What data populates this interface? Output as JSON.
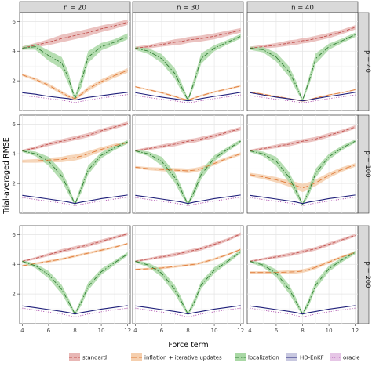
{
  "chart_data": {
    "type": "line",
    "xlabel": "Force term",
    "ylabel": "Trial-averaged RMSE",
    "xlim": [
      3.8,
      12.2
    ],
    "ylim": [
      0,
      6.6
    ],
    "xticks": [
      4,
      6,
      8,
      10,
      12
    ],
    "yticks": [
      2,
      4,
      6
    ],
    "grid": true,
    "legend_position": "bottom",
    "col_facets": [
      "n = 20",
      "n = 30",
      "n = 40"
    ],
    "row_facets": [
      "p = 40",
      "p = 100",
      "p = 200"
    ],
    "x": [
      4,
      5,
      6,
      7,
      7.5,
      8,
      8.5,
      9,
      10,
      11,
      12
    ],
    "colors": {
      "standard": "#c0504d",
      "inflation + iterative updates": "#e07b39",
      "localization": "#2f7d32",
      "HD-EnKF": "#1f1f7a",
      "oracle": "#b35ab3"
    },
    "legend": [
      {
        "name": "standard",
        "style": "dashed",
        "band": "#e8b7b5"
      },
      {
        "name": "inflation + iterative updates",
        "style": "longdash",
        "band": "#f5cfae"
      },
      {
        "name": "localization",
        "style": "dashdot",
        "band": "#a9d8a5"
      },
      {
        "name": "HD-EnKF",
        "style": "solid",
        "band": "#c8c8e0"
      },
      {
        "name": "oracle",
        "style": "dotted",
        "band": "#e6c6e6"
      }
    ],
    "panels": [
      {
        "row": 0,
        "col": 0,
        "series": {
          "standard": [
            4.2,
            4.4,
            4.6,
            4.85,
            4.95,
            5.05,
            5.15,
            5.25,
            5.5,
            5.7,
            5.95
          ],
          "standard_band": [
            0.12,
            0.15,
            0.2,
            0.25,
            0.25,
            0.25,
            0.25,
            0.25,
            0.22,
            0.2,
            0.18
          ],
          "inflation + iterative updates": [
            2.4,
            2.1,
            1.7,
            1.2,
            0.95,
            0.8,
            1.1,
            1.45,
            1.95,
            2.35,
            2.7
          ],
          "inflation + iterative updates_band": [
            0.08,
            0.1,
            0.12,
            0.12,
            0.12,
            0.1,
            0.12,
            0.15,
            0.15,
            0.15,
            0.15
          ],
          "localization": [
            4.2,
            4.3,
            3.7,
            3.2,
            2.2,
            0.8,
            2.0,
            3.6,
            4.3,
            4.6,
            5.0
          ],
          "localization_band": [
            0.1,
            0.2,
            0.35,
            0.4,
            0.4,
            0.15,
            0.4,
            0.4,
            0.25,
            0.2,
            0.2
          ],
          "HD-EnKF": [
            1.2,
            1.1,
            0.95,
            0.85,
            0.8,
            0.7,
            0.8,
            0.88,
            1.0,
            1.12,
            1.22
          ],
          "oracle": [
            1.0,
            0.92,
            0.8,
            0.7,
            0.62,
            0.52,
            0.62,
            0.7,
            0.85,
            0.95,
            1.08
          ]
        }
      },
      {
        "row": 0,
        "col": 1,
        "series": {
          "standard": [
            4.2,
            4.3,
            4.45,
            4.6,
            4.65,
            4.75,
            4.8,
            4.85,
            5.0,
            5.2,
            5.4
          ],
          "standard_band": [
            0.1,
            0.12,
            0.15,
            0.2,
            0.2,
            0.2,
            0.2,
            0.2,
            0.2,
            0.18,
            0.15
          ],
          "inflation + iterative updates": [
            1.6,
            1.4,
            1.2,
            0.95,
            0.8,
            0.7,
            0.85,
            1.0,
            1.25,
            1.45,
            1.65
          ],
          "inflation + iterative updates_band": [
            0.05,
            0.05,
            0.06,
            0.06,
            0.06,
            0.05,
            0.06,
            0.06,
            0.06,
            0.06,
            0.06
          ],
          "localization": [
            4.2,
            4.0,
            3.5,
            2.5,
            1.6,
            0.7,
            2.0,
            3.5,
            4.2,
            4.6,
            5.0
          ],
          "localization_band": [
            0.1,
            0.2,
            0.3,
            0.35,
            0.3,
            0.1,
            0.3,
            0.35,
            0.2,
            0.15,
            0.15
          ],
          "HD-EnKF": [
            1.2,
            1.05,
            0.9,
            0.78,
            0.72,
            0.65,
            0.72,
            0.8,
            0.95,
            1.08,
            1.22
          ],
          "oracle": [
            1.0,
            0.88,
            0.75,
            0.65,
            0.58,
            0.52,
            0.58,
            0.66,
            0.8,
            0.92,
            1.05
          ]
        }
      },
      {
        "row": 0,
        "col": 2,
        "series": {
          "standard": [
            4.2,
            4.3,
            4.4,
            4.55,
            4.6,
            4.7,
            4.75,
            4.85,
            5.05,
            5.3,
            5.6
          ],
          "standard_band": [
            0.1,
            0.12,
            0.15,
            0.18,
            0.18,
            0.18,
            0.18,
            0.18,
            0.18,
            0.15,
            0.15
          ],
          "inflation + iterative updates": [
            1.25,
            1.1,
            0.95,
            0.8,
            0.72,
            0.62,
            0.72,
            0.85,
            1.05,
            1.2,
            1.4
          ],
          "inflation + iterative updates_band": [
            0.04,
            0.04,
            0.04,
            0.04,
            0.04,
            0.04,
            0.04,
            0.04,
            0.04,
            0.04,
            0.04
          ],
          "localization": [
            4.2,
            4.1,
            3.6,
            2.6,
            1.7,
            0.7,
            2.0,
            3.5,
            4.3,
            4.7,
            5.1
          ],
          "localization_band": [
            0.1,
            0.18,
            0.3,
            0.35,
            0.3,
            0.1,
            0.3,
            0.35,
            0.2,
            0.15,
            0.15
          ],
          "HD-EnKF": [
            1.2,
            1.05,
            0.9,
            0.78,
            0.72,
            0.65,
            0.72,
            0.8,
            0.95,
            1.08,
            1.22
          ],
          "oracle": [
            1.0,
            0.88,
            0.75,
            0.65,
            0.58,
            0.52,
            0.58,
            0.66,
            0.8,
            0.92,
            1.05
          ]
        }
      },
      {
        "row": 1,
        "col": 0,
        "series": {
          "standard": [
            4.2,
            4.4,
            4.65,
            4.85,
            4.95,
            5.05,
            5.15,
            5.25,
            5.55,
            5.8,
            6.05
          ],
          "standard_band": [
            0.08,
            0.1,
            0.12,
            0.14,
            0.14,
            0.14,
            0.14,
            0.14,
            0.14,
            0.12,
            0.12
          ],
          "inflation + iterative updates": [
            3.5,
            3.52,
            3.58,
            3.62,
            3.7,
            3.75,
            3.85,
            4.0,
            4.3,
            4.55,
            4.75
          ],
          "inflation + iterative updates_band": [
            0.1,
            0.12,
            0.15,
            0.18,
            0.2,
            0.2,
            0.2,
            0.18,
            0.15,
            0.12,
            0.1
          ],
          "localization": [
            4.2,
            4.0,
            3.5,
            2.5,
            1.6,
            0.6,
            1.7,
            2.9,
            3.9,
            4.4,
            4.8
          ],
          "localization_band": [
            0.08,
            0.15,
            0.3,
            0.35,
            0.3,
            0.1,
            0.3,
            0.3,
            0.2,
            0.15,
            0.12
          ],
          "HD-EnKF": [
            1.2,
            1.08,
            0.95,
            0.82,
            0.75,
            0.65,
            0.75,
            0.82,
            0.98,
            1.1,
            1.22
          ],
          "oracle": [
            1.05,
            0.92,
            0.8,
            0.68,
            0.6,
            0.5,
            0.6,
            0.68,
            0.82,
            0.95,
            1.08
          ]
        }
      },
      {
        "row": 1,
        "col": 1,
        "series": {
          "standard": [
            4.2,
            4.35,
            4.5,
            4.65,
            4.75,
            4.85,
            4.9,
            5.0,
            5.2,
            5.45,
            5.7
          ],
          "standard_band": [
            0.08,
            0.1,
            0.12,
            0.14,
            0.14,
            0.14,
            0.14,
            0.14,
            0.14,
            0.12,
            0.12
          ],
          "inflation + iterative updates": [
            3.1,
            3.0,
            2.95,
            2.9,
            2.88,
            2.85,
            2.9,
            3.0,
            3.35,
            3.7,
            4.0
          ],
          "inflation + iterative updates_band": [
            0.08,
            0.1,
            0.12,
            0.14,
            0.15,
            0.15,
            0.15,
            0.14,
            0.12,
            0.1,
            0.1
          ],
          "localization": [
            4.2,
            4.0,
            3.5,
            2.4,
            1.5,
            0.6,
            1.5,
            2.6,
            3.7,
            4.3,
            4.85
          ],
          "localization_band": [
            0.08,
            0.15,
            0.3,
            0.35,
            0.3,
            0.1,
            0.3,
            0.3,
            0.2,
            0.15,
            0.12
          ],
          "HD-EnKF": [
            1.2,
            1.08,
            0.95,
            0.82,
            0.75,
            0.65,
            0.75,
            0.82,
            0.98,
            1.1,
            1.22
          ],
          "oracle": [
            1.05,
            0.92,
            0.8,
            0.68,
            0.6,
            0.5,
            0.6,
            0.68,
            0.82,
            0.95,
            1.08
          ]
        }
      },
      {
        "row": 1,
        "col": 2,
        "series": {
          "standard": [
            4.2,
            4.35,
            4.5,
            4.65,
            4.75,
            4.85,
            4.92,
            5.0,
            5.25,
            5.5,
            5.8
          ],
          "standard_band": [
            0.08,
            0.1,
            0.12,
            0.14,
            0.14,
            0.14,
            0.14,
            0.14,
            0.14,
            0.12,
            0.12
          ],
          "inflation + iterative updates": [
            2.6,
            2.45,
            2.25,
            2.0,
            1.85,
            1.7,
            1.85,
            2.05,
            2.55,
            2.95,
            3.25
          ],
          "inflation + iterative updates_band": [
            0.12,
            0.15,
            0.18,
            0.22,
            0.25,
            0.28,
            0.25,
            0.22,
            0.18,
            0.15,
            0.12
          ],
          "localization": [
            4.2,
            4.0,
            3.5,
            2.4,
            1.5,
            0.6,
            1.5,
            2.7,
            3.8,
            4.4,
            4.85
          ],
          "localization_band": [
            0.08,
            0.15,
            0.3,
            0.35,
            0.3,
            0.1,
            0.3,
            0.3,
            0.2,
            0.15,
            0.12
          ],
          "HD-EnKF": [
            1.2,
            1.08,
            0.95,
            0.82,
            0.75,
            0.65,
            0.75,
            0.82,
            0.98,
            1.1,
            1.22
          ],
          "oracle": [
            1.05,
            0.92,
            0.8,
            0.68,
            0.6,
            0.5,
            0.6,
            0.68,
            0.82,
            0.95,
            1.08
          ]
        }
      },
      {
        "row": 2,
        "col": 0,
        "series": {
          "standard": [
            4.2,
            4.4,
            4.65,
            4.9,
            5.0,
            5.1,
            5.2,
            5.3,
            5.55,
            5.8,
            6.05
          ],
          "standard_band": [
            0.06,
            0.08,
            0.1,
            0.12,
            0.12,
            0.12,
            0.12,
            0.12,
            0.12,
            0.1,
            0.1
          ],
          "inflation + iterative updates": [
            3.9,
            4.05,
            4.2,
            4.35,
            4.45,
            4.55,
            4.65,
            4.75,
            4.95,
            5.15,
            5.4
          ],
          "inflation + iterative updates_band": [
            0.06,
            0.07,
            0.08,
            0.08,
            0.08,
            0.08,
            0.08,
            0.08,
            0.08,
            0.07,
            0.06
          ],
          "localization": [
            4.2,
            3.9,
            3.3,
            2.3,
            1.5,
            0.65,
            1.5,
            2.5,
            3.5,
            4.1,
            4.7
          ],
          "localization_band": [
            0.08,
            0.15,
            0.25,
            0.3,
            0.25,
            0.1,
            0.25,
            0.25,
            0.2,
            0.15,
            0.12
          ],
          "HD-EnKF": [
            1.2,
            1.08,
            0.95,
            0.82,
            0.75,
            0.65,
            0.75,
            0.82,
            0.98,
            1.1,
            1.22
          ],
          "oracle": [
            1.05,
            0.9,
            0.78,
            0.65,
            0.55,
            0.45,
            0.55,
            0.65,
            0.8,
            0.93,
            1.05
          ]
        }
      },
      {
        "row": 2,
        "col": 1,
        "series": {
          "standard": [
            4.2,
            4.35,
            4.5,
            4.65,
            4.75,
            4.85,
            4.95,
            5.05,
            5.35,
            5.65,
            6.05
          ],
          "standard_band": [
            0.06,
            0.08,
            0.1,
            0.12,
            0.12,
            0.12,
            0.12,
            0.12,
            0.12,
            0.1,
            0.1
          ],
          "inflation + iterative updates": [
            3.65,
            3.7,
            3.75,
            3.85,
            3.9,
            3.95,
            4.0,
            4.1,
            4.35,
            4.65,
            5.0
          ],
          "inflation + iterative updates_band": [
            0.06,
            0.07,
            0.08,
            0.08,
            0.08,
            0.08,
            0.08,
            0.08,
            0.08,
            0.07,
            0.06
          ],
          "localization": [
            4.2,
            3.95,
            3.4,
            2.3,
            1.5,
            0.65,
            1.5,
            2.6,
            3.6,
            4.2,
            4.85
          ],
          "localization_band": [
            0.08,
            0.15,
            0.25,
            0.3,
            0.25,
            0.1,
            0.25,
            0.25,
            0.2,
            0.15,
            0.12
          ],
          "HD-EnKF": [
            1.2,
            1.08,
            0.95,
            0.82,
            0.75,
            0.65,
            0.75,
            0.82,
            0.98,
            1.1,
            1.22
          ],
          "oracle": [
            1.05,
            0.9,
            0.78,
            0.65,
            0.55,
            0.45,
            0.55,
            0.65,
            0.8,
            0.93,
            1.05
          ]
        }
      },
      {
        "row": 2,
        "col": 2,
        "series": {
          "standard": [
            4.2,
            4.35,
            4.5,
            4.65,
            4.75,
            4.85,
            4.95,
            5.05,
            5.35,
            5.65,
            5.95
          ],
          "standard_band": [
            0.06,
            0.08,
            0.1,
            0.12,
            0.12,
            0.12,
            0.12,
            0.12,
            0.12,
            0.1,
            0.1
          ],
          "inflation + iterative updates": [
            3.45,
            3.45,
            3.45,
            3.48,
            3.5,
            3.55,
            3.65,
            3.8,
            4.15,
            4.5,
            4.8
          ],
          "inflation + iterative updates_band": [
            0.08,
            0.08,
            0.1,
            0.12,
            0.12,
            0.12,
            0.12,
            0.12,
            0.1,
            0.08,
            0.08
          ],
          "localization": [
            4.2,
            3.95,
            3.4,
            2.3,
            1.5,
            0.65,
            1.5,
            2.6,
            3.7,
            4.3,
            4.8
          ],
          "localization_band": [
            0.08,
            0.15,
            0.25,
            0.3,
            0.25,
            0.1,
            0.25,
            0.25,
            0.2,
            0.15,
            0.12
          ],
          "HD-EnKF": [
            1.2,
            1.08,
            0.95,
            0.82,
            0.75,
            0.65,
            0.75,
            0.82,
            0.98,
            1.1,
            1.22
          ],
          "oracle": [
            1.05,
            0.9,
            0.78,
            0.65,
            0.55,
            0.45,
            0.55,
            0.65,
            0.8,
            0.93,
            1.05
          ]
        }
      }
    ]
  }
}
